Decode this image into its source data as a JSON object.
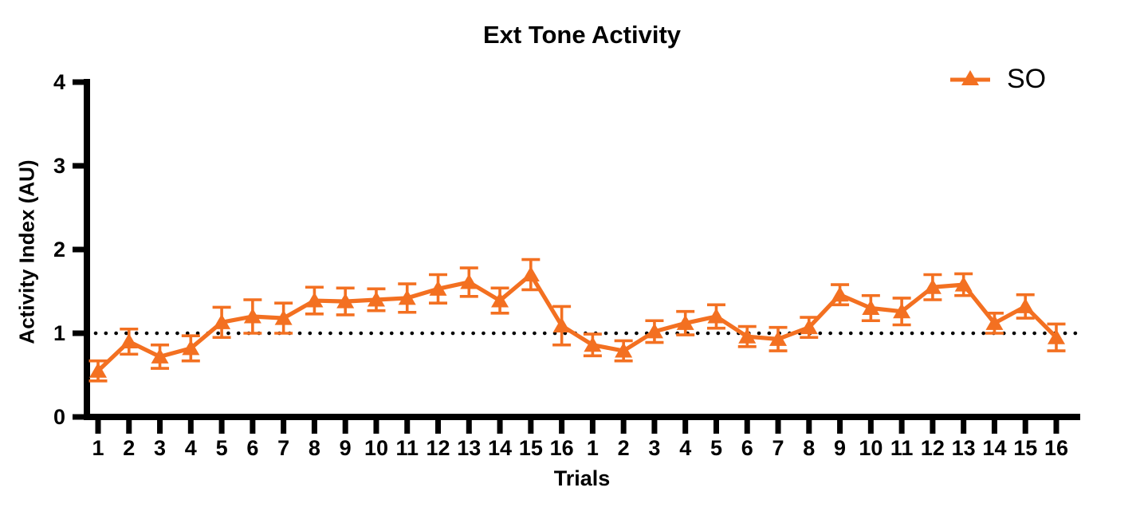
{
  "chart_data": {
    "type": "line",
    "title": "Ext Tone Activity",
    "xlabel": "Trials",
    "ylabel": "Activity Index (AU)",
    "ylim": [
      0,
      4
    ],
    "yticks": [
      0,
      1,
      2,
      3,
      4
    ],
    "reference_line_y": 1,
    "reference_line_style": "dotted",
    "grid": false,
    "legend_position": "top-right",
    "background_color": "#FFFFFF",
    "axis_color": "#000000",
    "categories": [
      "1",
      "2",
      "3",
      "4",
      "5",
      "6",
      "7",
      "8",
      "9",
      "10",
      "11",
      "12",
      "13",
      "14",
      "15",
      "16",
      "1",
      "2",
      "3",
      "4",
      "5",
      "6",
      "7",
      "8",
      "9",
      "10",
      "11",
      "12",
      "13",
      "14",
      "15",
      "16"
    ],
    "series": [
      {
        "name": "SO",
        "color": "#F37021",
        "marker": "triangle-up",
        "error_bars": true,
        "values": [
          0.55,
          0.9,
          0.72,
          0.82,
          1.13,
          1.2,
          1.18,
          1.39,
          1.38,
          1.4,
          1.42,
          1.53,
          1.61,
          1.39,
          1.7,
          1.09,
          0.86,
          0.79,
          1.02,
          1.12,
          1.2,
          0.96,
          0.93,
          1.07,
          1.46,
          1.3,
          1.26,
          1.55,
          1.58,
          1.12,
          1.32,
          0.95
        ],
        "errors": [
          0.12,
          0.15,
          0.14,
          0.15,
          0.18,
          0.2,
          0.18,
          0.16,
          0.16,
          0.13,
          0.17,
          0.17,
          0.17,
          0.15,
          0.18,
          0.23,
          0.13,
          0.12,
          0.13,
          0.14,
          0.14,
          0.12,
          0.14,
          0.12,
          0.12,
          0.15,
          0.16,
          0.15,
          0.13,
          0.12,
          0.14,
          0.16
        ]
      }
    ]
  }
}
